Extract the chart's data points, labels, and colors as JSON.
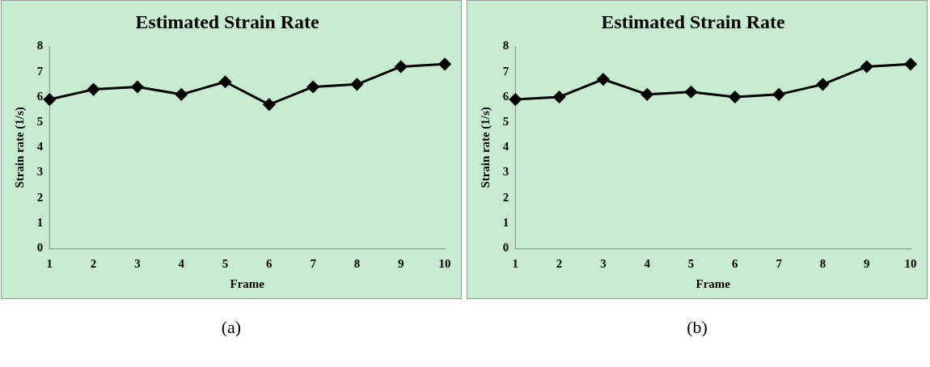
{
  "chart_data": [
    {
      "type": "line",
      "title": "Estimated Strain Rate",
      "xlabel": "Frame",
      "ylabel": "Strain rate (1/s)",
      "categories": [
        "1",
        "2",
        "3",
        "4",
        "5",
        "6",
        "7",
        "8",
        "9",
        "10"
      ],
      "series": [
        {
          "color": "#000000",
          "values": [
            5.9,
            6.3,
            6.4,
            6.1,
            6.6,
            5.7,
            6.4,
            6.5,
            7.2,
            7.3
          ]
        }
      ],
      "ylim": [
        0,
        8
      ],
      "yticks": [
        0,
        1,
        2,
        3,
        4,
        5,
        6,
        7,
        8
      ],
      "grid": false,
      "legend": false,
      "marker": "diamond",
      "line_style": "solid",
      "annotations": [
        "(a)"
      ]
    },
    {
      "type": "line",
      "title": "Estimated Strain Rate",
      "xlabel": "Frame",
      "ylabel": "Strain rate (1/s)",
      "categories": [
        "1",
        "2",
        "3",
        "4",
        "5",
        "6",
        "7",
        "8",
        "9",
        "10"
      ],
      "series": [
        {
          "color": "#000000",
          "values": [
            5.9,
            6.0,
            6.7,
            6.1,
            6.2,
            6.0,
            6.1,
            6.5,
            7.2,
            7.3
          ]
        }
      ],
      "ylim": [
        0,
        8
      ],
      "yticks": [
        0,
        1,
        2,
        3,
        4,
        5,
        6,
        7,
        8
      ],
      "grid": false,
      "legend": false,
      "marker": "diamond",
      "line_style": "solid",
      "annotations": [
        "(b)"
      ]
    }
  ]
}
